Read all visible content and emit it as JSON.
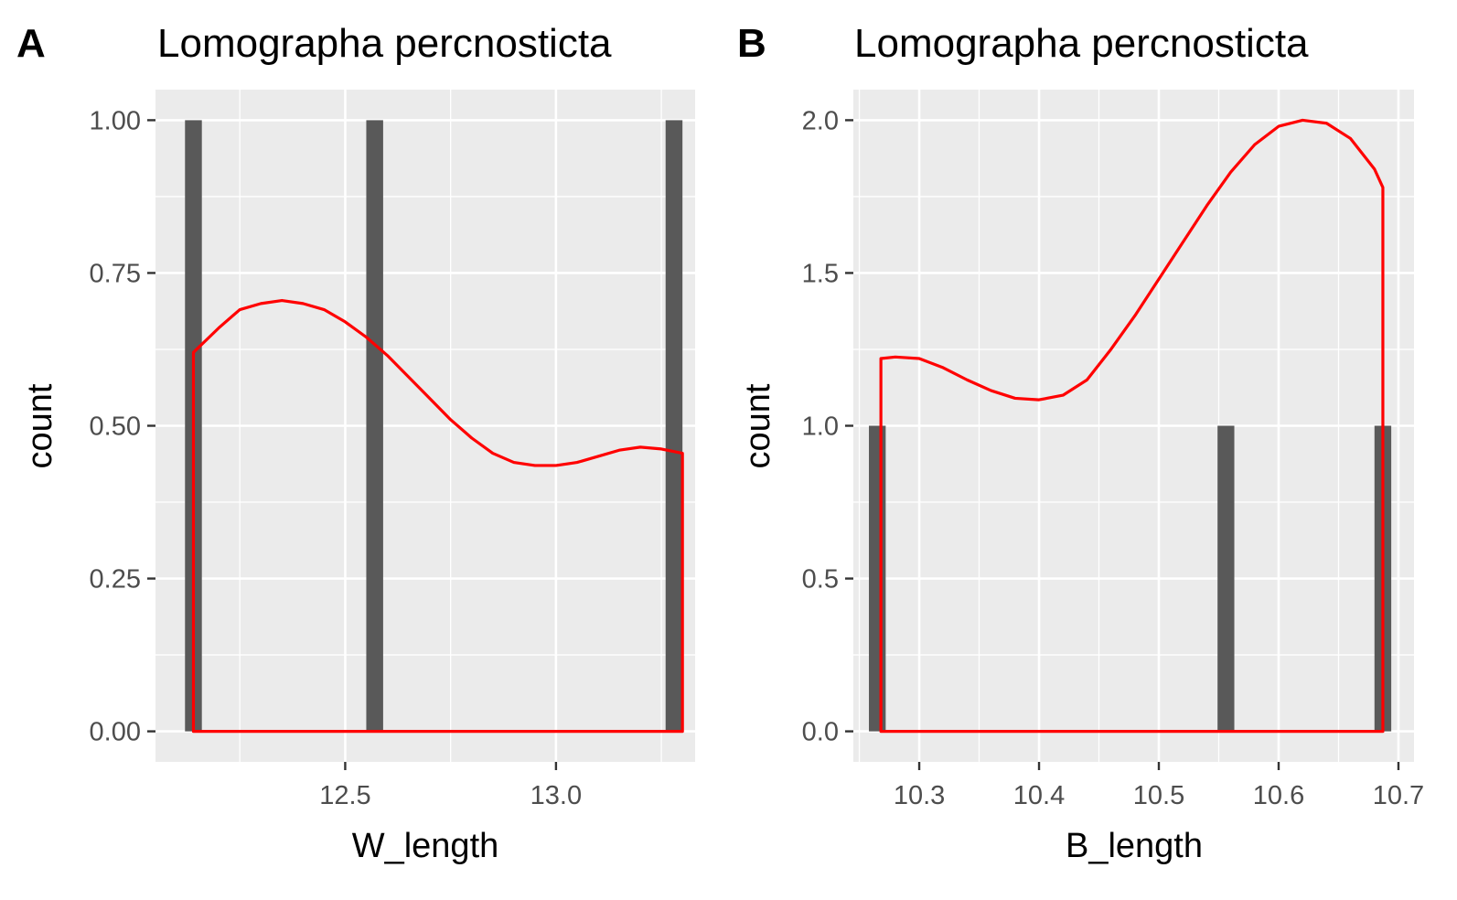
{
  "chart_data": [
    {
      "type": "bar",
      "panel_label": "A",
      "title": "Lomographa percnosticta",
      "xlabel": "W_length",
      "ylabel": "count",
      "xlim": [
        12.05,
        13.33
      ],
      "ylim": [
        -0.05,
        1.05
      ],
      "x_ticks": [
        12.5,
        13.0
      ],
      "x_tick_labels": [
        "12.5",
        "13.0"
      ],
      "x_minor_ticks": [
        12.25,
        12.75,
        13.25
      ],
      "y_ticks": [
        0,
        0.25,
        0.5,
        0.75,
        1.0
      ],
      "y_tick_labels": [
        "0.00",
        "0.25",
        "0.50",
        "0.75",
        "1.00"
      ],
      "bar_width": 0.04,
      "bars": [
        {
          "x": 12.14,
          "count": 1
        },
        {
          "x": 12.57,
          "count": 1
        },
        {
          "x": 13.28,
          "count": 1
        }
      ],
      "density_curve": {
        "x": [
          12.14,
          12.2,
          12.25,
          12.3,
          12.35,
          12.4,
          12.45,
          12.5,
          12.55,
          12.6,
          12.65,
          12.7,
          12.75,
          12.8,
          12.85,
          12.9,
          12.95,
          13.0,
          13.05,
          13.1,
          13.15,
          13.2,
          13.25,
          13.3
        ],
        "y": [
          0.62,
          0.66,
          0.69,
          0.7,
          0.705,
          0.7,
          0.69,
          0.67,
          0.645,
          0.615,
          0.58,
          0.545,
          0.51,
          0.48,
          0.455,
          0.44,
          0.435,
          0.435,
          0.44,
          0.45,
          0.46,
          0.465,
          0.462,
          0.455
        ],
        "color": "#ff0000"
      },
      "bar_color": "#595959",
      "panel_background": "#ebebeb",
      "grid": true
    },
    {
      "type": "bar",
      "panel_label": "B",
      "title": "Lomographa percnosticta",
      "xlabel": "B_length",
      "ylabel": "count",
      "xlim": [
        10.245,
        10.713
      ],
      "ylim": [
        -0.1,
        2.1
      ],
      "x_ticks": [
        10.3,
        10.4,
        10.5,
        10.6,
        10.7
      ],
      "x_tick_labels": [
        "10.3",
        "10.4",
        "10.5",
        "10.6",
        "10.7"
      ],
      "x_minor_ticks": [
        10.25,
        10.35,
        10.45,
        10.55,
        10.65
      ],
      "y_ticks": [
        0,
        0.5,
        1.0,
        1.5,
        2.0
      ],
      "y_tick_labels": [
        "0.0",
        "0.5",
        "1.0",
        "1.5",
        "2.0"
      ],
      "bar_width": 0.014,
      "bars": [
        {
          "x": 10.265,
          "count": 1
        },
        {
          "x": 10.556,
          "count": 1
        },
        {
          "x": 10.687,
          "count": 1
        }
      ],
      "density_curve": {
        "x": [
          10.268,
          10.28,
          10.3,
          10.32,
          10.34,
          10.36,
          10.38,
          10.4,
          10.42,
          10.44,
          10.46,
          10.48,
          10.5,
          10.52,
          10.54,
          10.56,
          10.58,
          10.6,
          10.62,
          10.64,
          10.66,
          10.68,
          10.687
        ],
        "y": [
          1.22,
          1.225,
          1.22,
          1.19,
          1.15,
          1.115,
          1.09,
          1.085,
          1.1,
          1.15,
          1.25,
          1.36,
          1.48,
          1.6,
          1.72,
          1.83,
          1.92,
          1.98,
          2.0,
          1.99,
          1.94,
          1.84,
          1.78
        ],
        "color": "#ff0000"
      },
      "bar_color": "#595959",
      "panel_background": "#ebebeb",
      "grid": true
    }
  ]
}
